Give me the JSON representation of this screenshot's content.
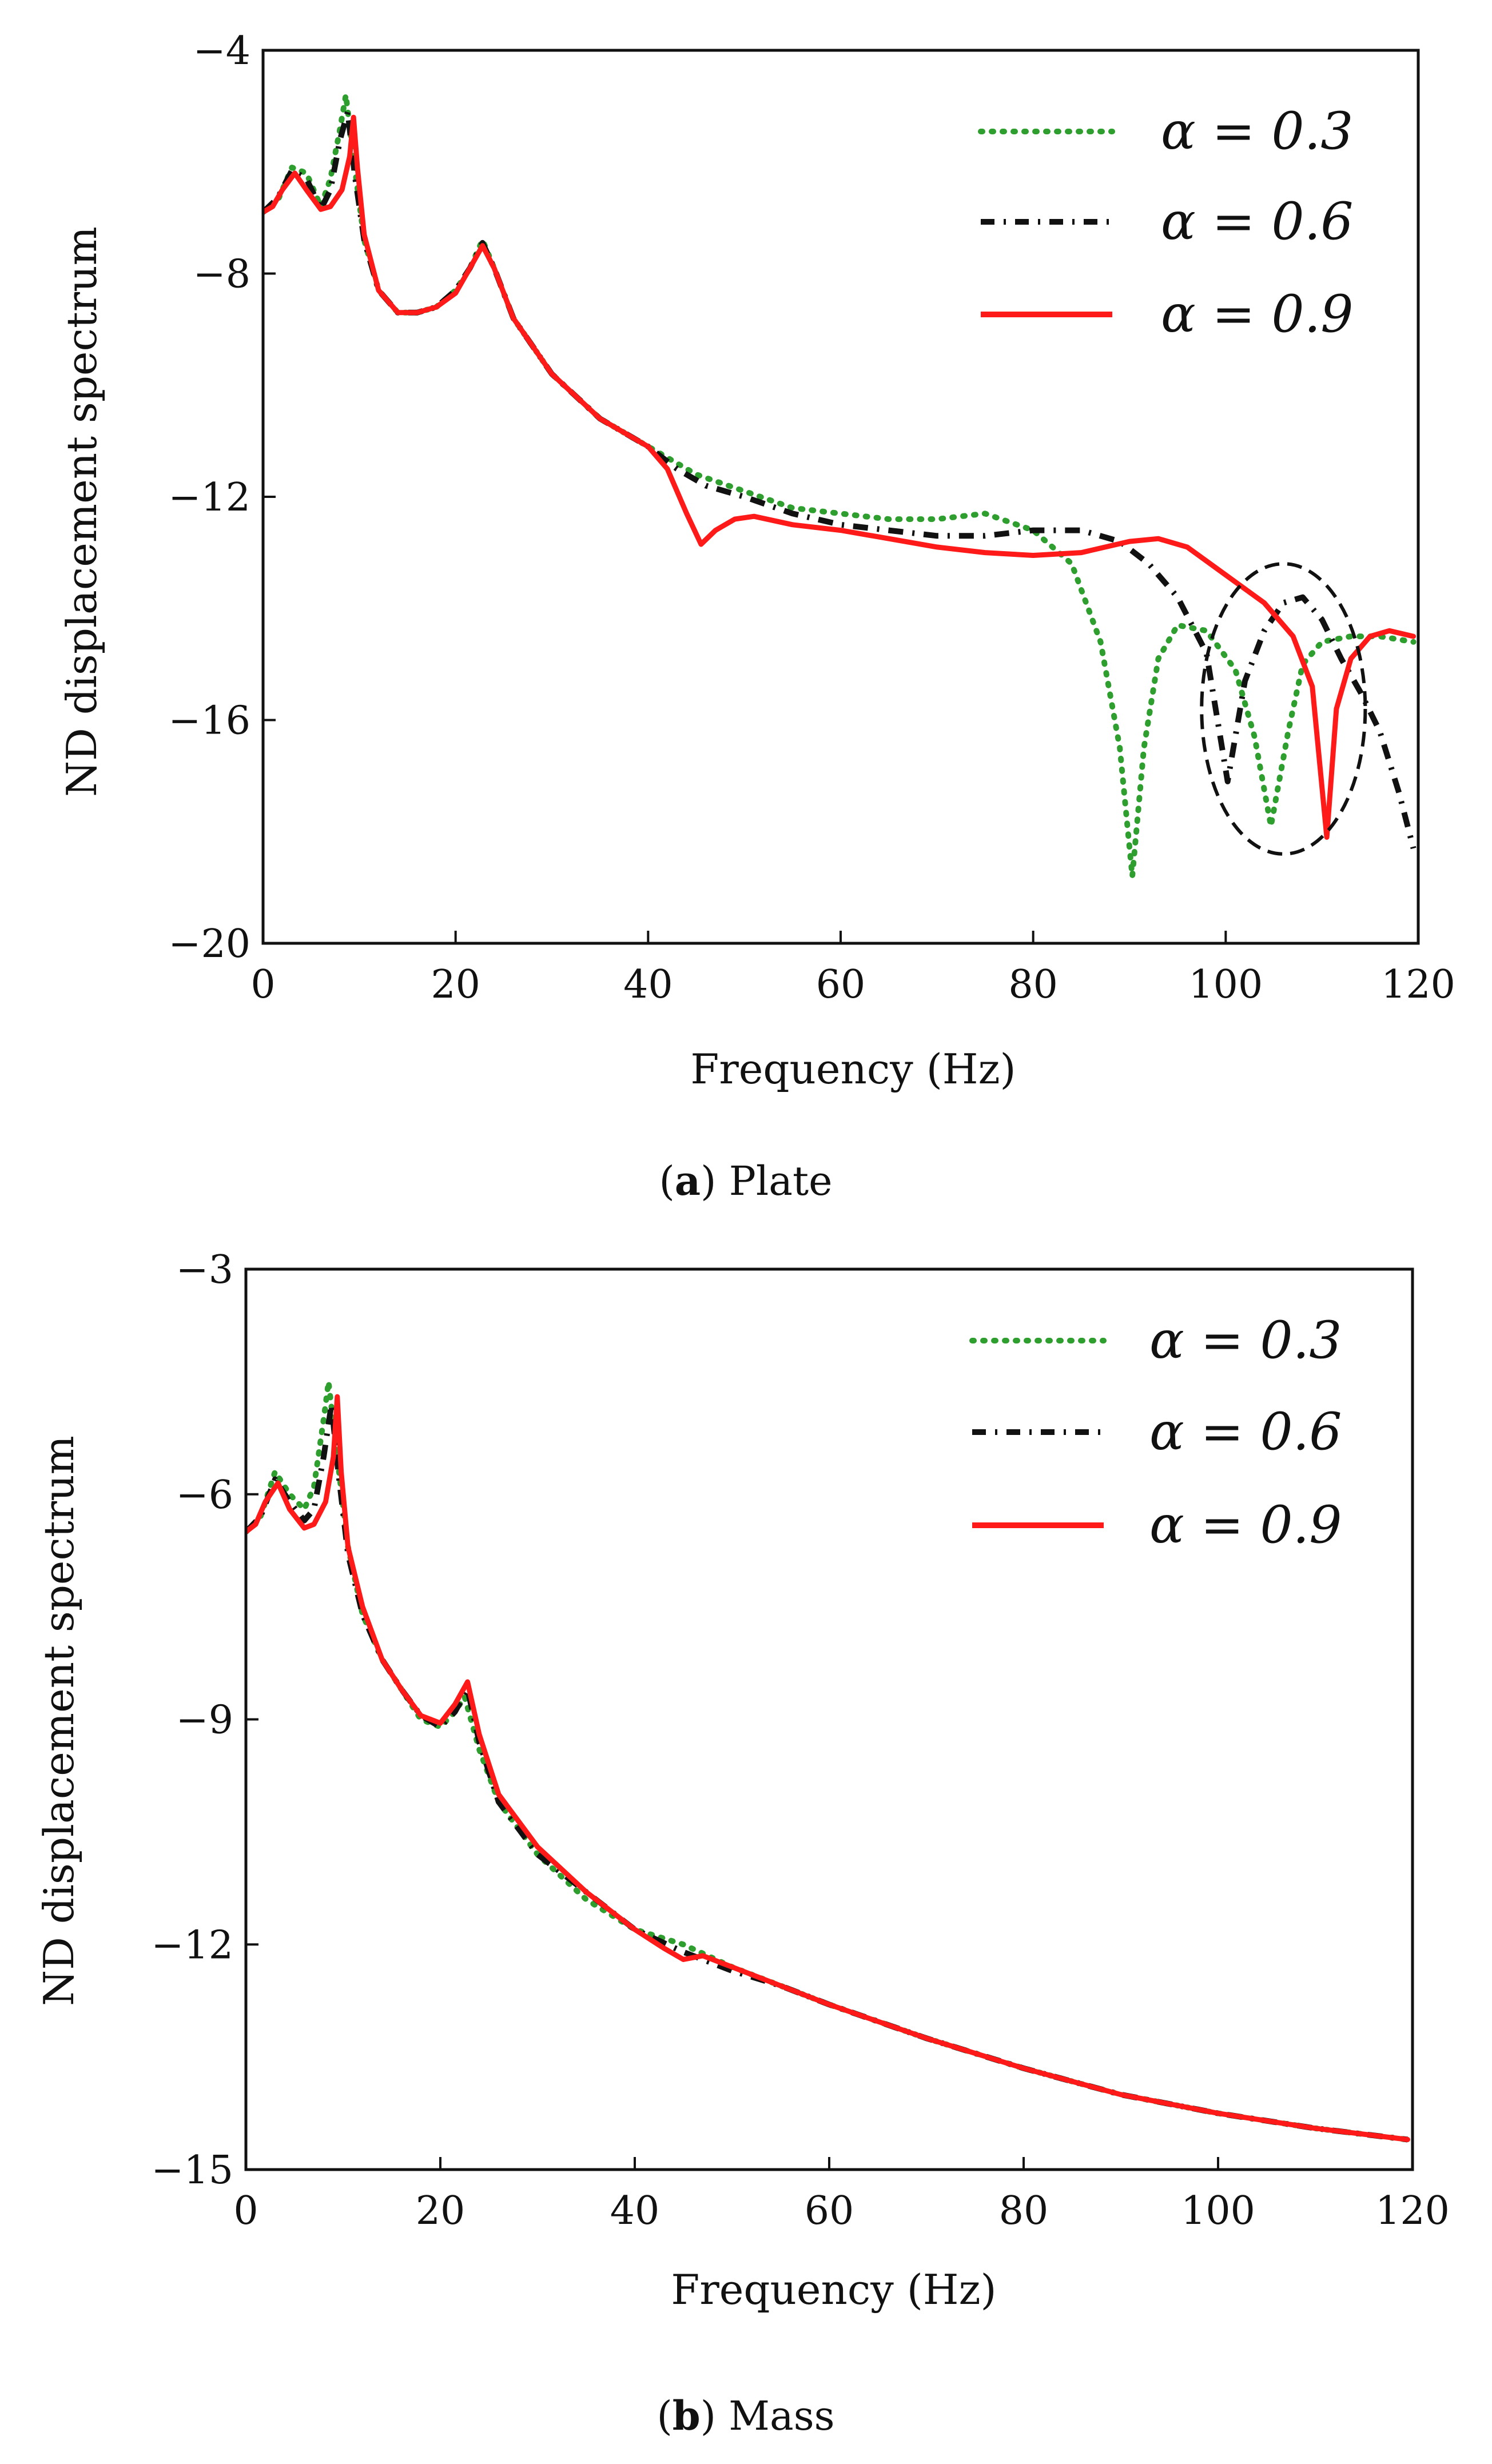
{
  "colors": {
    "alpha03": "#2e9e2e",
    "alpha06": "#111111",
    "alpha09": "#ff1a1a",
    "annotation": "#111111"
  },
  "chart_data": [
    {
      "type": "line",
      "panel_id": "a",
      "caption_label": "a",
      "caption_text": "Plate",
      "xlabel": "Frequency (Hz)",
      "ylabel": "ND displacement spectrum",
      "xlim": [
        0,
        120
      ],
      "ylim": [
        -20,
        -4
      ],
      "xticks": [
        0,
        20,
        40,
        60,
        80,
        100,
        120
      ],
      "yticks": [
        -20,
        -16,
        -12,
        -8,
        -4
      ],
      "xtick_labels": [
        "0",
        "20",
        "40",
        "60",
        "80",
        "100",
        "120"
      ],
      "ytick_labels": [
        "−20",
        "−16",
        "−12",
        "−8",
        "−4"
      ],
      "legend_position": "top-right",
      "annotation": {
        "shape": "dashed-ellipse",
        "center": [
          106,
          -15.8
        ],
        "radii": [
          8.5,
          2.6
        ]
      },
      "series": [
        {
          "name": "α = 0.3",
          "style": "dotted",
          "color_key": "alpha03",
          "points": [
            [
              0,
              -6.9
            ],
            [
              1.5,
              -6.7
            ],
            [
              3,
              -6.1
            ],
            [
              4.5,
              -6.2
            ],
            [
              6,
              -6.8
            ],
            [
              7,
              -6.3
            ],
            [
              8,
              -5.4
            ],
            [
              8.6,
              -4.8
            ],
            [
              9.3,
              -5.8
            ],
            [
              10.5,
              -7.4
            ],
            [
              12,
              -8.3
            ],
            [
              14,
              -8.7
            ],
            [
              16,
              -8.7
            ],
            [
              18,
              -8.6
            ],
            [
              20,
              -8.3
            ],
            [
              21.5,
              -7.9
            ],
            [
              22.8,
              -7.4
            ],
            [
              24,
              -7.9
            ],
            [
              26,
              -8.8
            ],
            [
              30,
              -9.8
            ],
            [
              35,
              -10.6
            ],
            [
              40,
              -11.1
            ],
            [
              45,
              -11.6
            ],
            [
              50,
              -11.9
            ],
            [
              55,
              -12.2
            ],
            [
              60,
              -12.3
            ],
            [
              65,
              -12.4
            ],
            [
              70,
              -12.4
            ],
            [
              75,
              -12.3
            ],
            [
              80,
              -12.6
            ],
            [
              84,
              -13.2
            ],
            [
              87,
              -14.6
            ],
            [
              89,
              -16.5
            ],
            [
              90.3,
              -18.8
            ],
            [
              91.5,
              -16.5
            ],
            [
              93,
              -14.9
            ],
            [
              95,
              -14.3
            ],
            [
              98,
              -14.4
            ],
            [
              101,
              -15.1
            ],
            [
              103,
              -16.3
            ],
            [
              104.7,
              -17.9
            ],
            [
              106.5,
              -16.2
            ],
            [
              108,
              -15
            ],
            [
              110,
              -14.6
            ],
            [
              113,
              -14.5
            ],
            [
              116,
              -14.5
            ],
            [
              119.5,
              -14.6
            ]
          ]
        },
        {
          "name": "α = 0.6",
          "style": "dashdot",
          "color_key": "alpha06",
          "points": [
            [
              0,
              -6.9
            ],
            [
              1.5,
              -6.65
            ],
            [
              3,
              -6.15
            ],
            [
              4.5,
              -6.3
            ],
            [
              6,
              -6.85
            ],
            [
              7,
              -6.5
            ],
            [
              8,
              -5.6
            ],
            [
              8.8,
              -5.1
            ],
            [
              9.5,
              -6.2
            ],
            [
              10.5,
              -7.4
            ],
            [
              12,
              -8.3
            ],
            [
              14,
              -8.7
            ],
            [
              16,
              -8.7
            ],
            [
              18,
              -8.6
            ],
            [
              20,
              -8.3
            ],
            [
              21.5,
              -7.9
            ],
            [
              22.8,
              -7.45
            ],
            [
              24,
              -7.9
            ],
            [
              26,
              -8.8
            ],
            [
              30,
              -9.8
            ],
            [
              35,
              -10.6
            ],
            [
              40,
              -11.1
            ],
            [
              43,
              -11.5
            ],
            [
              46,
              -11.8
            ],
            [
              50,
              -12
            ],
            [
              55,
              -12.3
            ],
            [
              60,
              -12.5
            ],
            [
              65,
              -12.6
            ],
            [
              70,
              -12.7
            ],
            [
              75,
              -12.7
            ],
            [
              80,
              -12.6
            ],
            [
              85,
              -12.6
            ],
            [
              89,
              -12.8
            ],
            [
              92,
              -13.2
            ],
            [
              95,
              -13.8
            ],
            [
              98,
              -14.8
            ],
            [
              100.2,
              -17.1
            ],
            [
              102,
              -15.3
            ],
            [
              104,
              -14.4
            ],
            [
              106,
              -13.9
            ],
            [
              108,
              -13.8
            ],
            [
              110,
              -14.2
            ],
            [
              112,
              -14.9
            ],
            [
              114,
              -15.5
            ],
            [
              116,
              -16.2
            ],
            [
              118,
              -17.3
            ],
            [
              119.5,
              -18.3
            ]
          ]
        },
        {
          "name": "α = 0.9",
          "style": "solid",
          "color_key": "alpha09",
          "points": [
            [
              0,
              -6.9
            ],
            [
              1,
              -6.8
            ],
            [
              2,
              -6.5
            ],
            [
              3.3,
              -6.2
            ],
            [
              4.5,
              -6.5
            ],
            [
              6,
              -6.85
            ],
            [
              7,
              -6.8
            ],
            [
              8.2,
              -6.5
            ],
            [
              9,
              -5.9
            ],
            [
              9.4,
              -5.2
            ],
            [
              9.8,
              -6.1
            ],
            [
              10.5,
              -7.3
            ],
            [
              12,
              -8.3
            ],
            [
              14,
              -8.7
            ],
            [
              16,
              -8.7
            ],
            [
              18,
              -8.6
            ],
            [
              20,
              -8.35
            ],
            [
              21.5,
              -7.9
            ],
            [
              22.8,
              -7.5
            ],
            [
              24,
              -7.9
            ],
            [
              26,
              -8.8
            ],
            [
              30,
              -9.8
            ],
            [
              35,
              -10.6
            ],
            [
              40,
              -11.1
            ],
            [
              42,
              -11.5
            ],
            [
              44,
              -12.3
            ],
            [
              45.5,
              -12.85
            ],
            [
              47,
              -12.6
            ],
            [
              49,
              -12.4
            ],
            [
              51,
              -12.35
            ],
            [
              55,
              -12.5
            ],
            [
              60,
              -12.6
            ],
            [
              65,
              -12.75
            ],
            [
              70,
              -12.9
            ],
            [
              75,
              -13
            ],
            [
              80,
              -13.05
            ],
            [
              85,
              -13
            ],
            [
              90,
              -12.8
            ],
            [
              93,
              -12.75
            ],
            [
              96,
              -12.9
            ],
            [
              100,
              -13.4
            ],
            [
              104,
              -13.9
            ],
            [
              107,
              -14.5
            ],
            [
              109,
              -15.4
            ],
            [
              110.5,
              -18.1
            ],
            [
              111.5,
              -15.8
            ],
            [
              113,
              -14.9
            ],
            [
              115,
              -14.5
            ],
            [
              117,
              -14.4
            ],
            [
              119.5,
              -14.5
            ]
          ]
        }
      ]
    },
    {
      "type": "line",
      "panel_id": "b",
      "caption_label": "b",
      "caption_text": "Mass",
      "xlabel": "Frequency (Hz)",
      "ylabel": "ND displacement spectrum",
      "xlim": [
        0,
        120
      ],
      "ylim": [
        -15,
        -3
      ],
      "xticks": [
        0,
        20,
        40,
        60,
        80,
        100,
        120
      ],
      "yticks": [
        -15,
        -12,
        -9,
        -6,
        -3
      ],
      "xtick_labels": [
        "0",
        "20",
        "40",
        "60",
        "80",
        "100",
        "120"
      ],
      "ytick_labels": [
        "−15",
        "−12",
        "−9",
        "−6",
        "−3"
      ],
      "legend_position": "top-right",
      "series": [
        {
          "name": "α = 0.3",
          "style": "dotted",
          "color_key": "alpha03",
          "points": [
            [
              0,
              -6.5
            ],
            [
              1.5,
              -6.3
            ],
            [
              3,
              -5.7
            ],
            [
              4.5,
              -6
            ],
            [
              6,
              -6.2
            ],
            [
              7,
              -5.9
            ],
            [
              8,
              -5
            ],
            [
              8.5,
              -4.5
            ],
            [
              9.3,
              -5.4
            ],
            [
              10.5,
              -6.7
            ],
            [
              12,
              -7.6
            ],
            [
              14,
              -8.2
            ],
            [
              16,
              -8.6
            ],
            [
              18,
              -9
            ],
            [
              20,
              -9.1
            ],
            [
              21.5,
              -8.9
            ],
            [
              22.5,
              -8.7
            ],
            [
              24,
              -9.4
            ],
            [
              26,
              -10.1
            ],
            [
              30,
              -10.8
            ],
            [
              35,
              -11.4
            ],
            [
              40,
              -11.8
            ],
            [
              45,
              -12
            ],
            [
              50,
              -12.3
            ],
            [
              55,
              -12.55
            ],
            [
              60,
              -12.8
            ],
            [
              70,
              -13.25
            ],
            [
              80,
              -13.65
            ],
            [
              90,
              -14
            ],
            [
              100,
              -14.25
            ],
            [
              110,
              -14.45
            ],
            [
              119.5,
              -14.6
            ]
          ]
        },
        {
          "name": "α = 0.6",
          "style": "dashdot",
          "color_key": "alpha06",
          "points": [
            [
              0,
              -6.5
            ],
            [
              1.5,
              -6.3
            ],
            [
              3,
              -5.8
            ],
            [
              4.5,
              -6.1
            ],
            [
              6,
              -6.35
            ],
            [
              7,
              -6.2
            ],
            [
              8,
              -5.5
            ],
            [
              8.8,
              -4.8
            ],
            [
              9.5,
              -5.7
            ],
            [
              10.5,
              -6.8
            ],
            [
              12,
              -7.6
            ],
            [
              14,
              -8.2
            ],
            [
              16,
              -8.6
            ],
            [
              18,
              -8.95
            ],
            [
              20,
              -9.1
            ],
            [
              21.5,
              -8.9
            ],
            [
              22.8,
              -8.6
            ],
            [
              24,
              -9.3
            ],
            [
              26,
              -10.1
            ],
            [
              30,
              -10.8
            ],
            [
              35,
              -11.3
            ],
            [
              40,
              -11.8
            ],
            [
              45,
              -12.1
            ],
            [
              50,
              -12.35
            ],
            [
              55,
              -12.55
            ],
            [
              60,
              -12.8
            ],
            [
              70,
              -13.25
            ],
            [
              80,
              -13.65
            ],
            [
              90,
              -14
            ],
            [
              100,
              -14.25
            ],
            [
              110,
              -14.45
            ],
            [
              119.5,
              -14.6
            ]
          ]
        },
        {
          "name": "α = 0.9",
          "style": "solid",
          "color_key": "alpha09",
          "points": [
            [
              0,
              -6.5
            ],
            [
              1,
              -6.4
            ],
            [
              2,
              -6.1
            ],
            [
              3.3,
              -5.85
            ],
            [
              4.5,
              -6.2
            ],
            [
              6,
              -6.45
            ],
            [
              7,
              -6.4
            ],
            [
              8.2,
              -6.1
            ],
            [
              9,
              -5.5
            ],
            [
              9.4,
              -4.7
            ],
            [
              9.8,
              -5.7
            ],
            [
              10.5,
              -6.7
            ],
            [
              12,
              -7.5
            ],
            [
              14,
              -8.2
            ],
            [
              16,
              -8.6
            ],
            [
              18,
              -8.95
            ],
            [
              20,
              -9.05
            ],
            [
              21.5,
              -8.8
            ],
            [
              22.8,
              -8.5
            ],
            [
              24,
              -9.2
            ],
            [
              26,
              -10
            ],
            [
              30,
              -10.7
            ],
            [
              35,
              -11.3
            ],
            [
              40,
              -11.8
            ],
            [
              43,
              -12.05
            ],
            [
              45,
              -12.2
            ],
            [
              47,
              -12.15
            ],
            [
              50,
              -12.3
            ],
            [
              55,
              -12.55
            ],
            [
              60,
              -12.8
            ],
            [
              70,
              -13.25
            ],
            [
              80,
              -13.65
            ],
            [
              90,
              -14
            ],
            [
              100,
              -14.25
            ],
            [
              110,
              -14.45
            ],
            [
              119.5,
              -14.6
            ]
          ]
        }
      ]
    }
  ]
}
